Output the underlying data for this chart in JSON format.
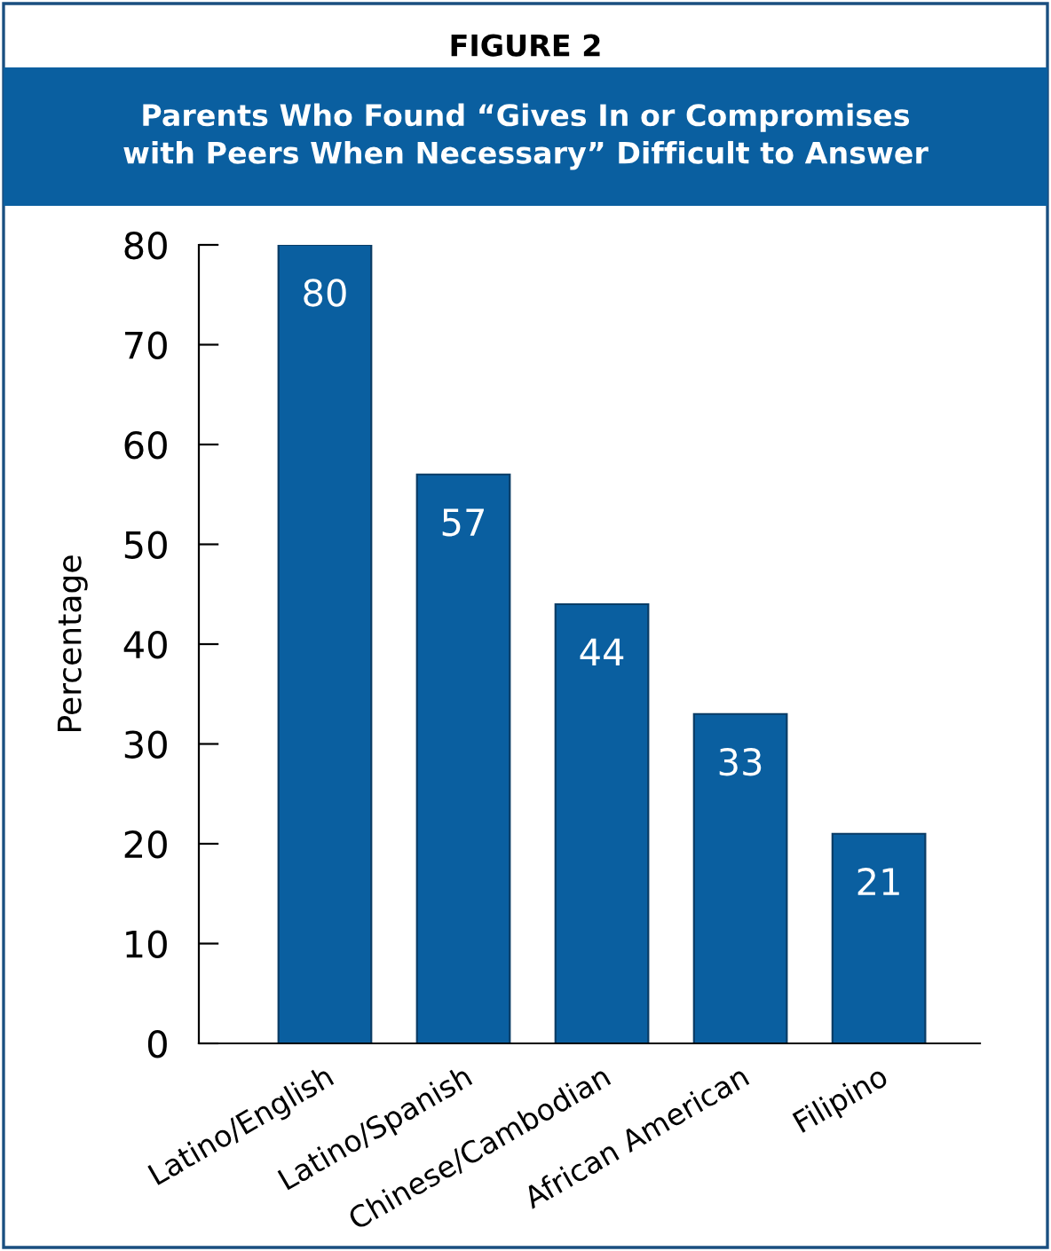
{
  "chart_data": {
    "type": "bar",
    "title": "FIGURE 2",
    "subtitle": "Parents Who Found “Gives In or Compromises\nwith Peers When Necessary” Difficult to Answer",
    "ylabel": "Percentage",
    "categories": [
      "Latino/English",
      "Latino/Spanish",
      "Chinese/Cambodian",
      "African American",
      "Filipino"
    ],
    "values": [
      80,
      57,
      44,
      33,
      21
    ],
    "color": "#0a5fa0",
    "ylim": [
      0,
      80
    ],
    "yticks": [
      0,
      10,
      20,
      30,
      40,
      50,
      60,
      70,
      80
    ],
    "grid": false,
    "data_labels": true
  }
}
